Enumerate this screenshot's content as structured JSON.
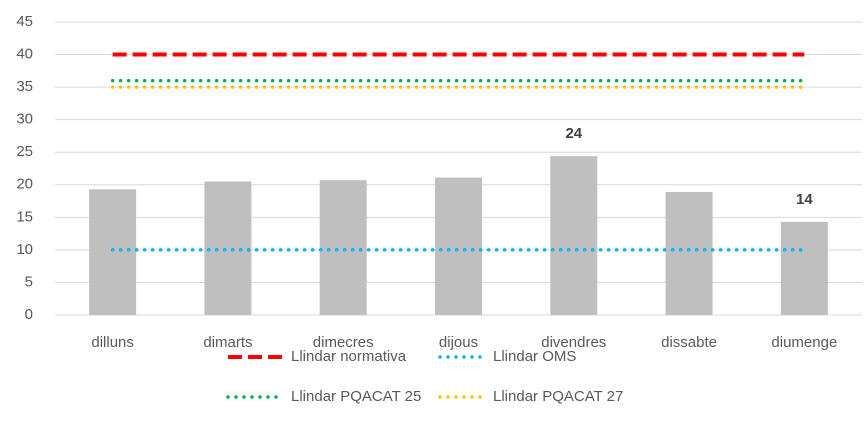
{
  "chart_data": {
    "type": "bar",
    "categories": [
      "dilluns",
      "dimarts",
      "dimecres",
      "dijous",
      "divendres",
      "dissabte",
      "diumenge"
    ],
    "values": [
      19.3,
      20.5,
      20.7,
      21.1,
      24.4,
      18.9,
      14.3
    ],
    "value_labels": [
      null,
      null,
      null,
      null,
      "24",
      null,
      "14"
    ],
    "color": "#bfbfbf",
    "lines": [
      {
        "name": "Llindar normativa",
        "color": "#ff0000",
        "style": "dashed",
        "values": [
          40,
          40,
          40,
          40,
          40,
          40,
          40
        ]
      },
      {
        "name": "Llindar OMS",
        "color": "#00b0f0",
        "style": "dotted",
        "values": [
          10,
          10,
          10,
          10,
          10,
          10,
          10
        ]
      },
      {
        "name": "Llindar PQACAT 25",
        "color": "#00b050",
        "style": "dotted",
        "values": [
          36,
          36,
          36,
          36,
          36,
          36,
          36
        ]
      },
      {
        "name": "Llindar PQACAT 27",
        "color": "#ffc000",
        "style": "dotted",
        "values": [
          35,
          35,
          35,
          35,
          35,
          35,
          35
        ]
      }
    ],
    "ylim": [
      0,
      45
    ],
    "yticks": [
      0,
      5,
      10,
      15,
      20,
      25,
      30,
      35,
      40,
      45
    ],
    "grid": true,
    "legend": "bottom"
  }
}
